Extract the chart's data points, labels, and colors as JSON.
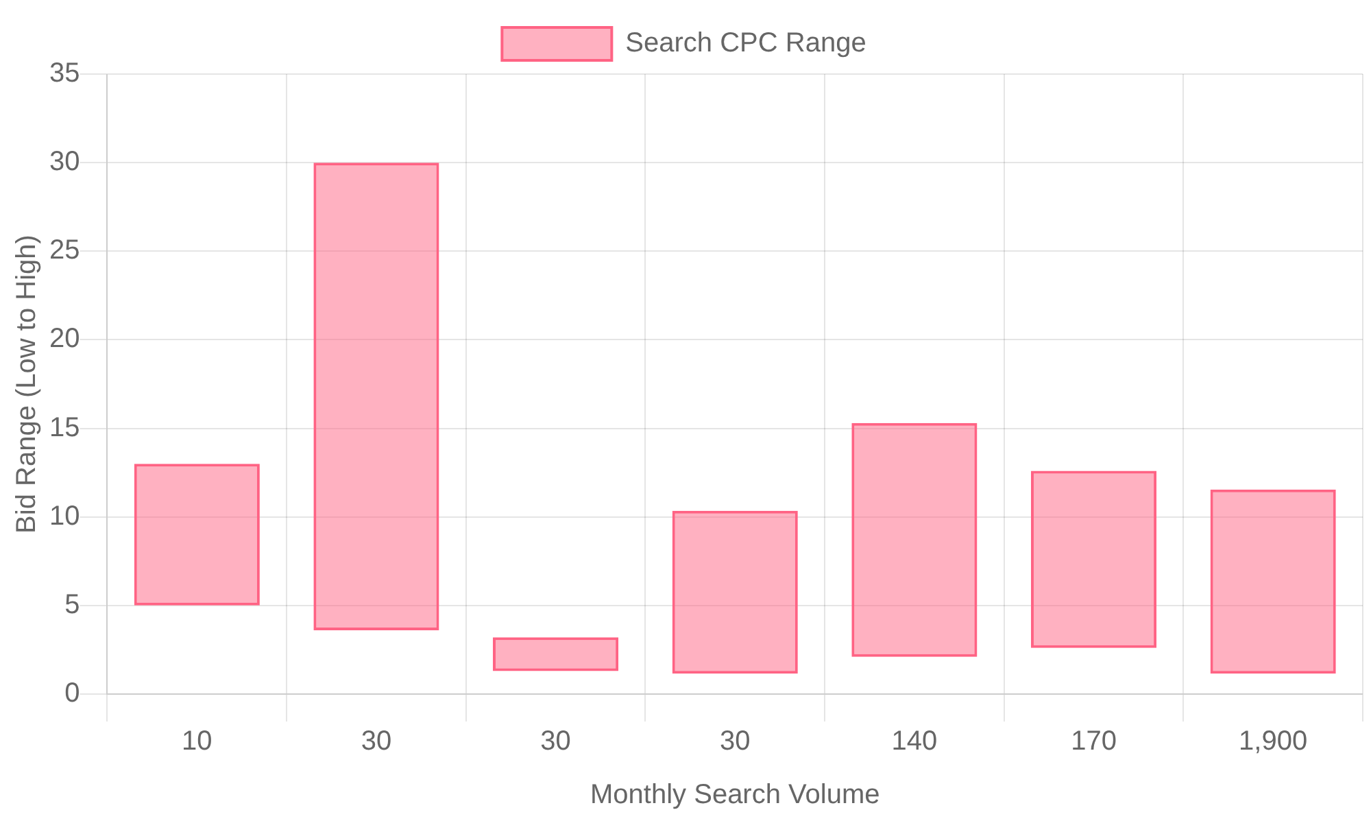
{
  "chart_data": {
    "type": "bar",
    "xlabel": "Monthly Search Volume",
    "ylabel": "Bid Range (Low to High)",
    "categories": [
      "10",
      "30",
      "30",
      "30",
      "140",
      "170",
      "1,900"
    ],
    "series": [
      {
        "name": "Search CPC Range",
        "color": "#ff6384",
        "values": [
          8,
          26.4,
          1.9,
          9.2,
          13.2,
          10,
          10.4
        ],
        "base": [
          5,
          3.6,
          1.3,
          1.15,
          2.1,
          2.6,
          1.15
        ]
      }
    ],
    "ylim": [
      0,
      35
    ],
    "yticks": [
      0,
      5,
      10,
      15,
      20,
      25,
      30,
      35
    ],
    "grid": true,
    "legend": "top"
  }
}
